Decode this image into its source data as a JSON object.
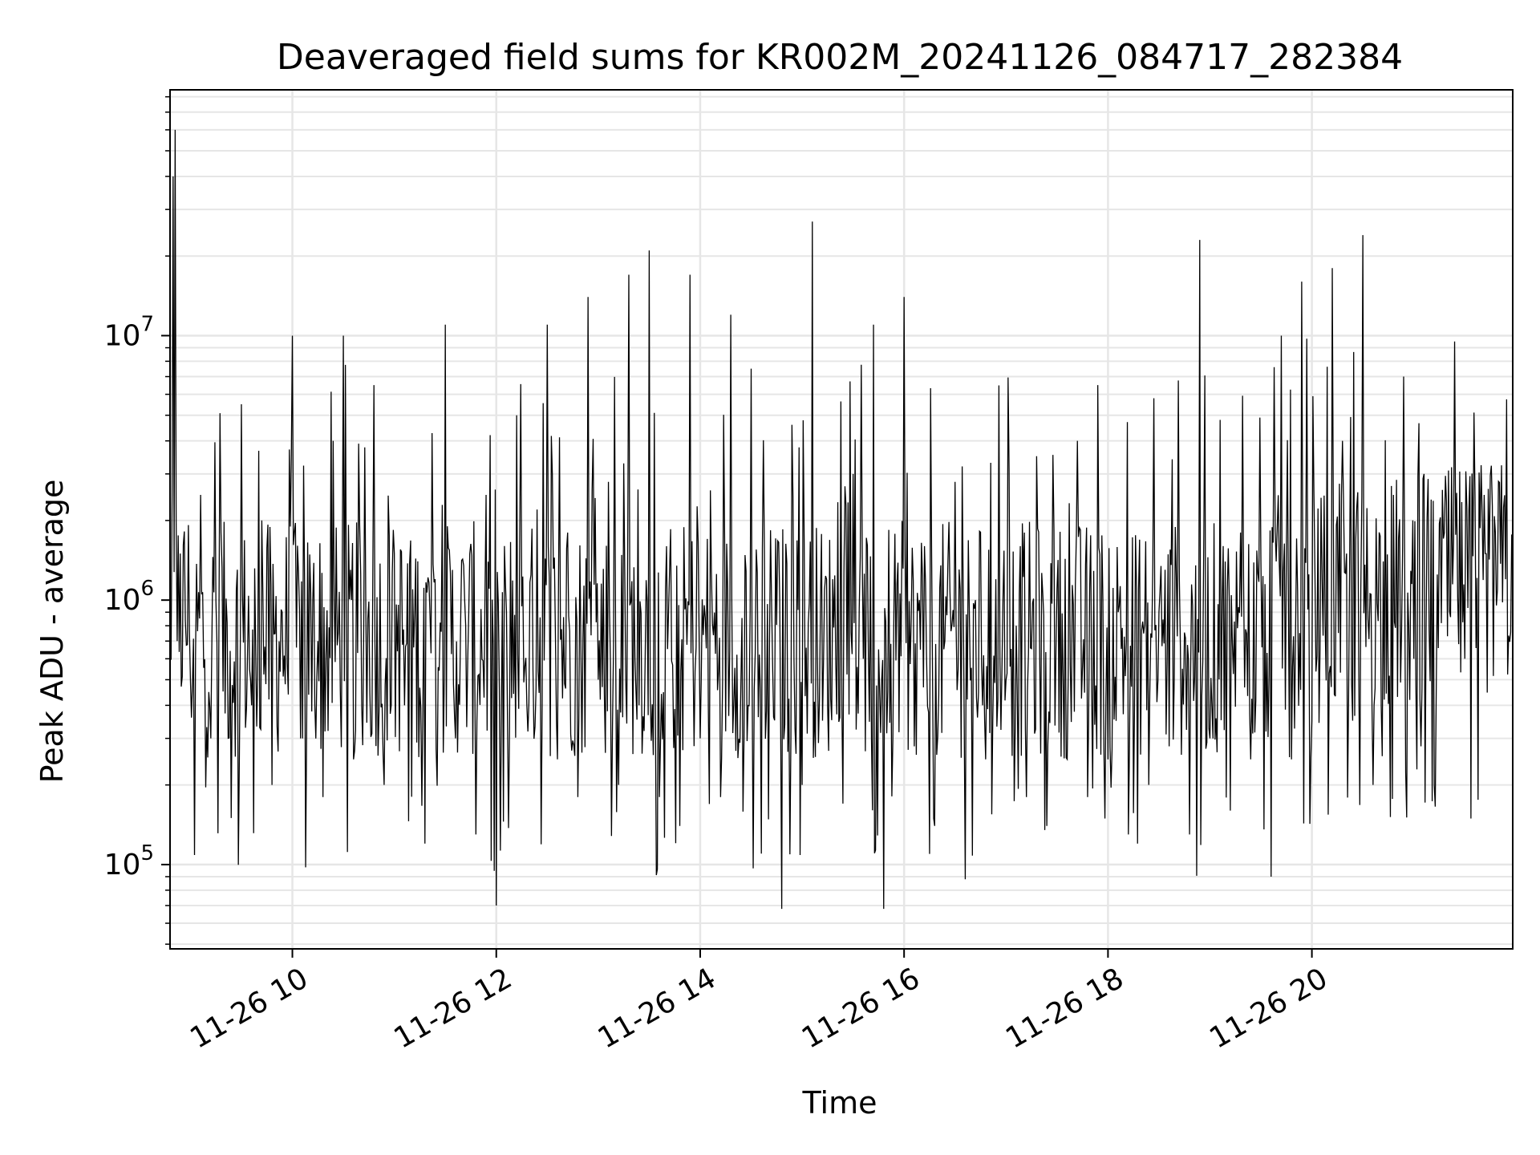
{
  "chart_data": {
    "type": "line",
    "title": "Deaveraged field sums for KR002M_20241126_084717_282384",
    "xlabel": "Time",
    "ylabel": "Peak ADU - average",
    "y_scale": "log",
    "grid": true,
    "ylim": [
      48000,
      85000000
    ],
    "x_range_hours": [
      8.8,
      21.97
    ],
    "line_color": "#000000",
    "grid_color": "#e6e6e6",
    "x_ticks": [
      {
        "value": 10,
        "label": "11-26 10"
      },
      {
        "value": 12,
        "label": "11-26 12"
      },
      {
        "value": 14,
        "label": "11-26 14"
      },
      {
        "value": 16,
        "label": "11-26 16"
      },
      {
        "value": 18,
        "label": "11-26 18"
      },
      {
        "value": 20,
        "label": "11-26 20"
      }
    ],
    "y_ticks": [
      {
        "value": 100000,
        "base": "10",
        "exp": "5"
      },
      {
        "value": 1000000,
        "base": "10",
        "exp": "6"
      },
      {
        "value": 10000000,
        "base": "10",
        "exp": "7"
      }
    ],
    "series": [
      {
        "x": [
          8.8,
          8.83,
          8.85,
          8.87,
          8.9,
          9.0,
          9.1,
          9.2,
          9.3,
          9.4,
          9.5,
          9.6,
          9.7,
          9.8,
          9.9,
          10.0,
          10.1,
          10.2,
          10.3,
          10.4,
          10.5,
          10.6,
          10.7,
          10.8,
          10.9,
          11.0,
          11.1,
          11.2,
          11.3,
          11.4,
          11.5,
          11.6,
          11.7,
          11.8,
          11.9,
          12.0,
          12.1,
          12.2,
          12.3,
          12.4,
          12.5,
          12.6,
          12.7,
          12.8,
          12.9,
          13.0,
          13.1,
          13.2,
          13.3,
          13.4,
          13.5,
          13.6,
          13.7,
          13.8,
          13.9,
          14.0,
          14.1,
          14.2,
          14.3,
          14.4,
          14.5,
          14.6,
          14.7,
          14.8,
          14.9,
          15.0,
          15.1,
          15.2,
          15.3,
          15.4,
          15.5,
          15.6,
          15.7,
          15.8,
          15.9,
          16.0,
          16.1,
          16.2,
          16.3,
          16.4,
          16.5,
          16.6,
          16.7,
          16.8,
          16.9,
          17.0,
          17.1,
          17.2,
          17.3,
          17.4,
          17.5,
          17.6,
          17.7,
          17.8,
          17.9,
          18.0,
          18.1,
          18.2,
          18.3,
          18.4,
          18.5,
          18.6,
          18.7,
          18.8,
          18.9,
          19.0,
          19.1,
          19.2,
          19.3,
          19.4,
          19.5,
          19.6,
          19.7,
          19.8,
          19.9,
          20.0,
          20.1,
          20.2,
          20.3,
          20.4,
          20.5,
          20.6,
          20.7,
          20.8,
          20.9,
          21.0,
          21.1,
          21.2,
          21.3,
          21.4,
          21.5,
          21.6,
          21.7,
          21.8,
          21.9,
          21.97
        ],
        "y": [
          900000,
          40000000,
          60000000,
          700000,
          1500000,
          500000,
          2500000,
          300000,
          1800000,
          150000,
          5500000,
          400000,
          2000000,
          200000,
          900000,
          10000000,
          300000,
          1000000,
          180000,
          4000000,
          10000000,
          250000,
          800000,
          6500000,
          200000,
          1500000,
          400000,
          900000,
          120000,
          1200000,
          11000000,
          300000,
          800000,
          130000,
          2500000,
          70000,
          900000,
          5000000,
          400000,
          2200000,
          11000000,
          250000,
          1800000,
          180000,
          14000000,
          500000,
          2800000,
          200000,
          17000000,
          400000,
          21000000,
          180000,
          1300000,
          140000,
          17000000,
          300000,
          2600000,
          180000,
          12000000,
          500000,
          7500000,
          110000,
          1000000,
          68000,
          4600000,
          200000,
          27000000,
          350000,
          1200000,
          170000,
          3000000,
          600000,
          11000000,
          68000,
          900000,
          14000000,
          280000,
          1600000,
          140000,
          700000,
          2800000,
          88000,
          1000000,
          250000,
          1200000,
          500000,
          800000,
          180000,
          3500000,
          140000,
          1100000,
          250000,
          4000000,
          180000,
          6500000,
          250000,
          900000,
          130000,
          1100000,
          200000,
          900000,
          280000,
          1200000,
          130000,
          23000000,
          300000,
          4800000,
          160000,
          1800000,
          250000,
          1400000,
          90000,
          10000000,
          250000,
          16000000,
          350000,
          1200000,
          18000000,
          4000000,
          350000,
          24000000,
          200000,
          1400000,
          2500000,
          7000000,
          600000,
          3000000,
          200000,
          1800000,
          9500000,
          600000,
          2500000,
          1500000,
          1800000,
          1200000,
          1600000
        ]
      }
    ]
  }
}
